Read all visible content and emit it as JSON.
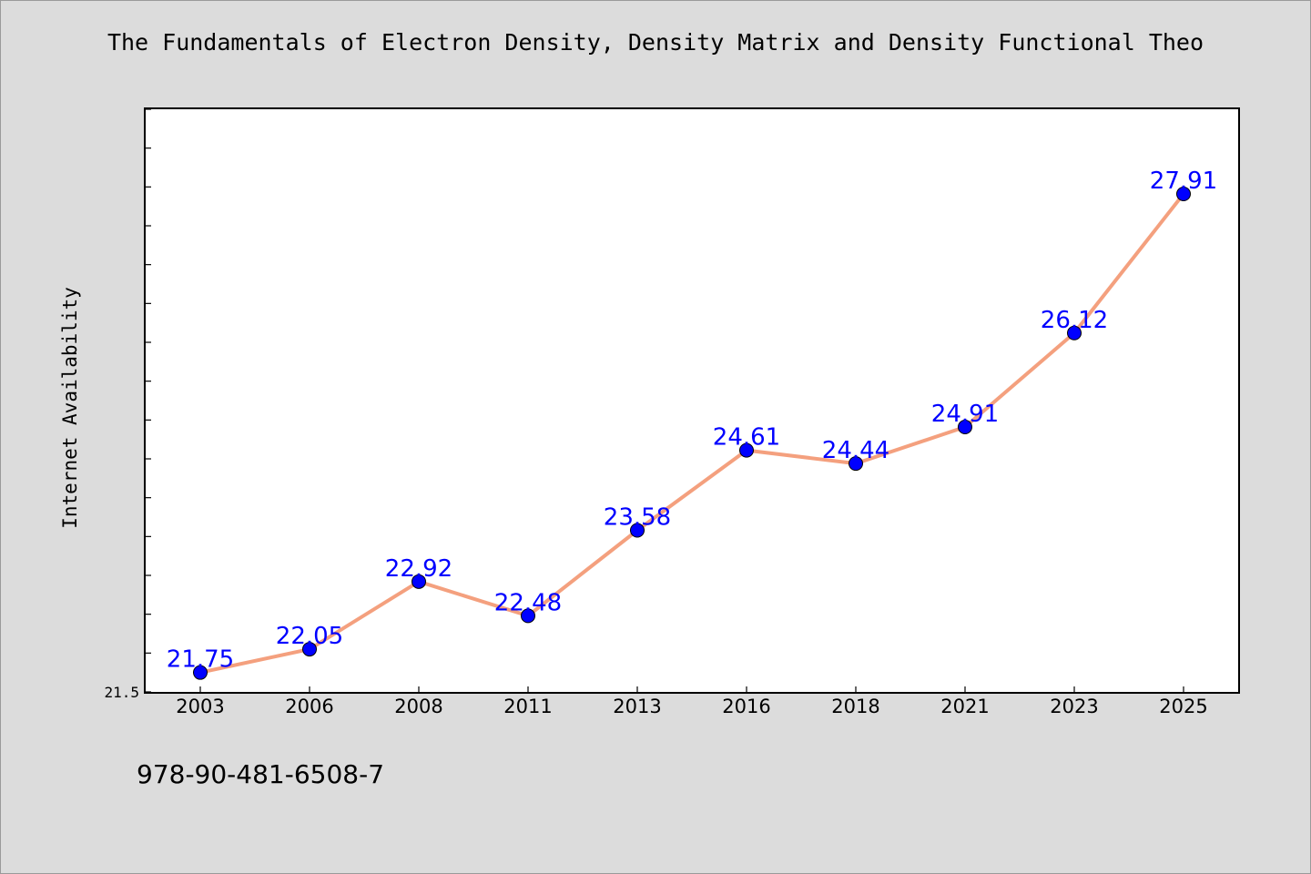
{
  "chart_data": {
    "type": "line",
    "title": "The Fundamentals of Electron Density, Density Matrix and Density Functional Theo",
    "xlabel": "",
    "ylabel": "Internet Availability",
    "categories": [
      "2003",
      "2006",
      "2008",
      "2011",
      "2013",
      "2016",
      "2018",
      "2021",
      "2023",
      "2025"
    ],
    "series": [
      {
        "values": [
          21.75,
          22.05,
          22.92,
          22.48,
          23.58,
          24.61,
          24.44,
          24.91,
          26.12,
          27.91
        ]
      }
    ],
    "ylim": [
      21.5,
      29.0
    ],
    "y_tick_labels": [
      "21.5"
    ],
    "grid": false,
    "legend": "none",
    "colors": {
      "line": "#f4a07e",
      "marker": "#0000ff",
      "data_label": "#0000ff",
      "background": "#dcdcdc",
      "plot_area": "#ffffff"
    }
  },
  "footer": {
    "text": "978-90-481-6508-7"
  }
}
